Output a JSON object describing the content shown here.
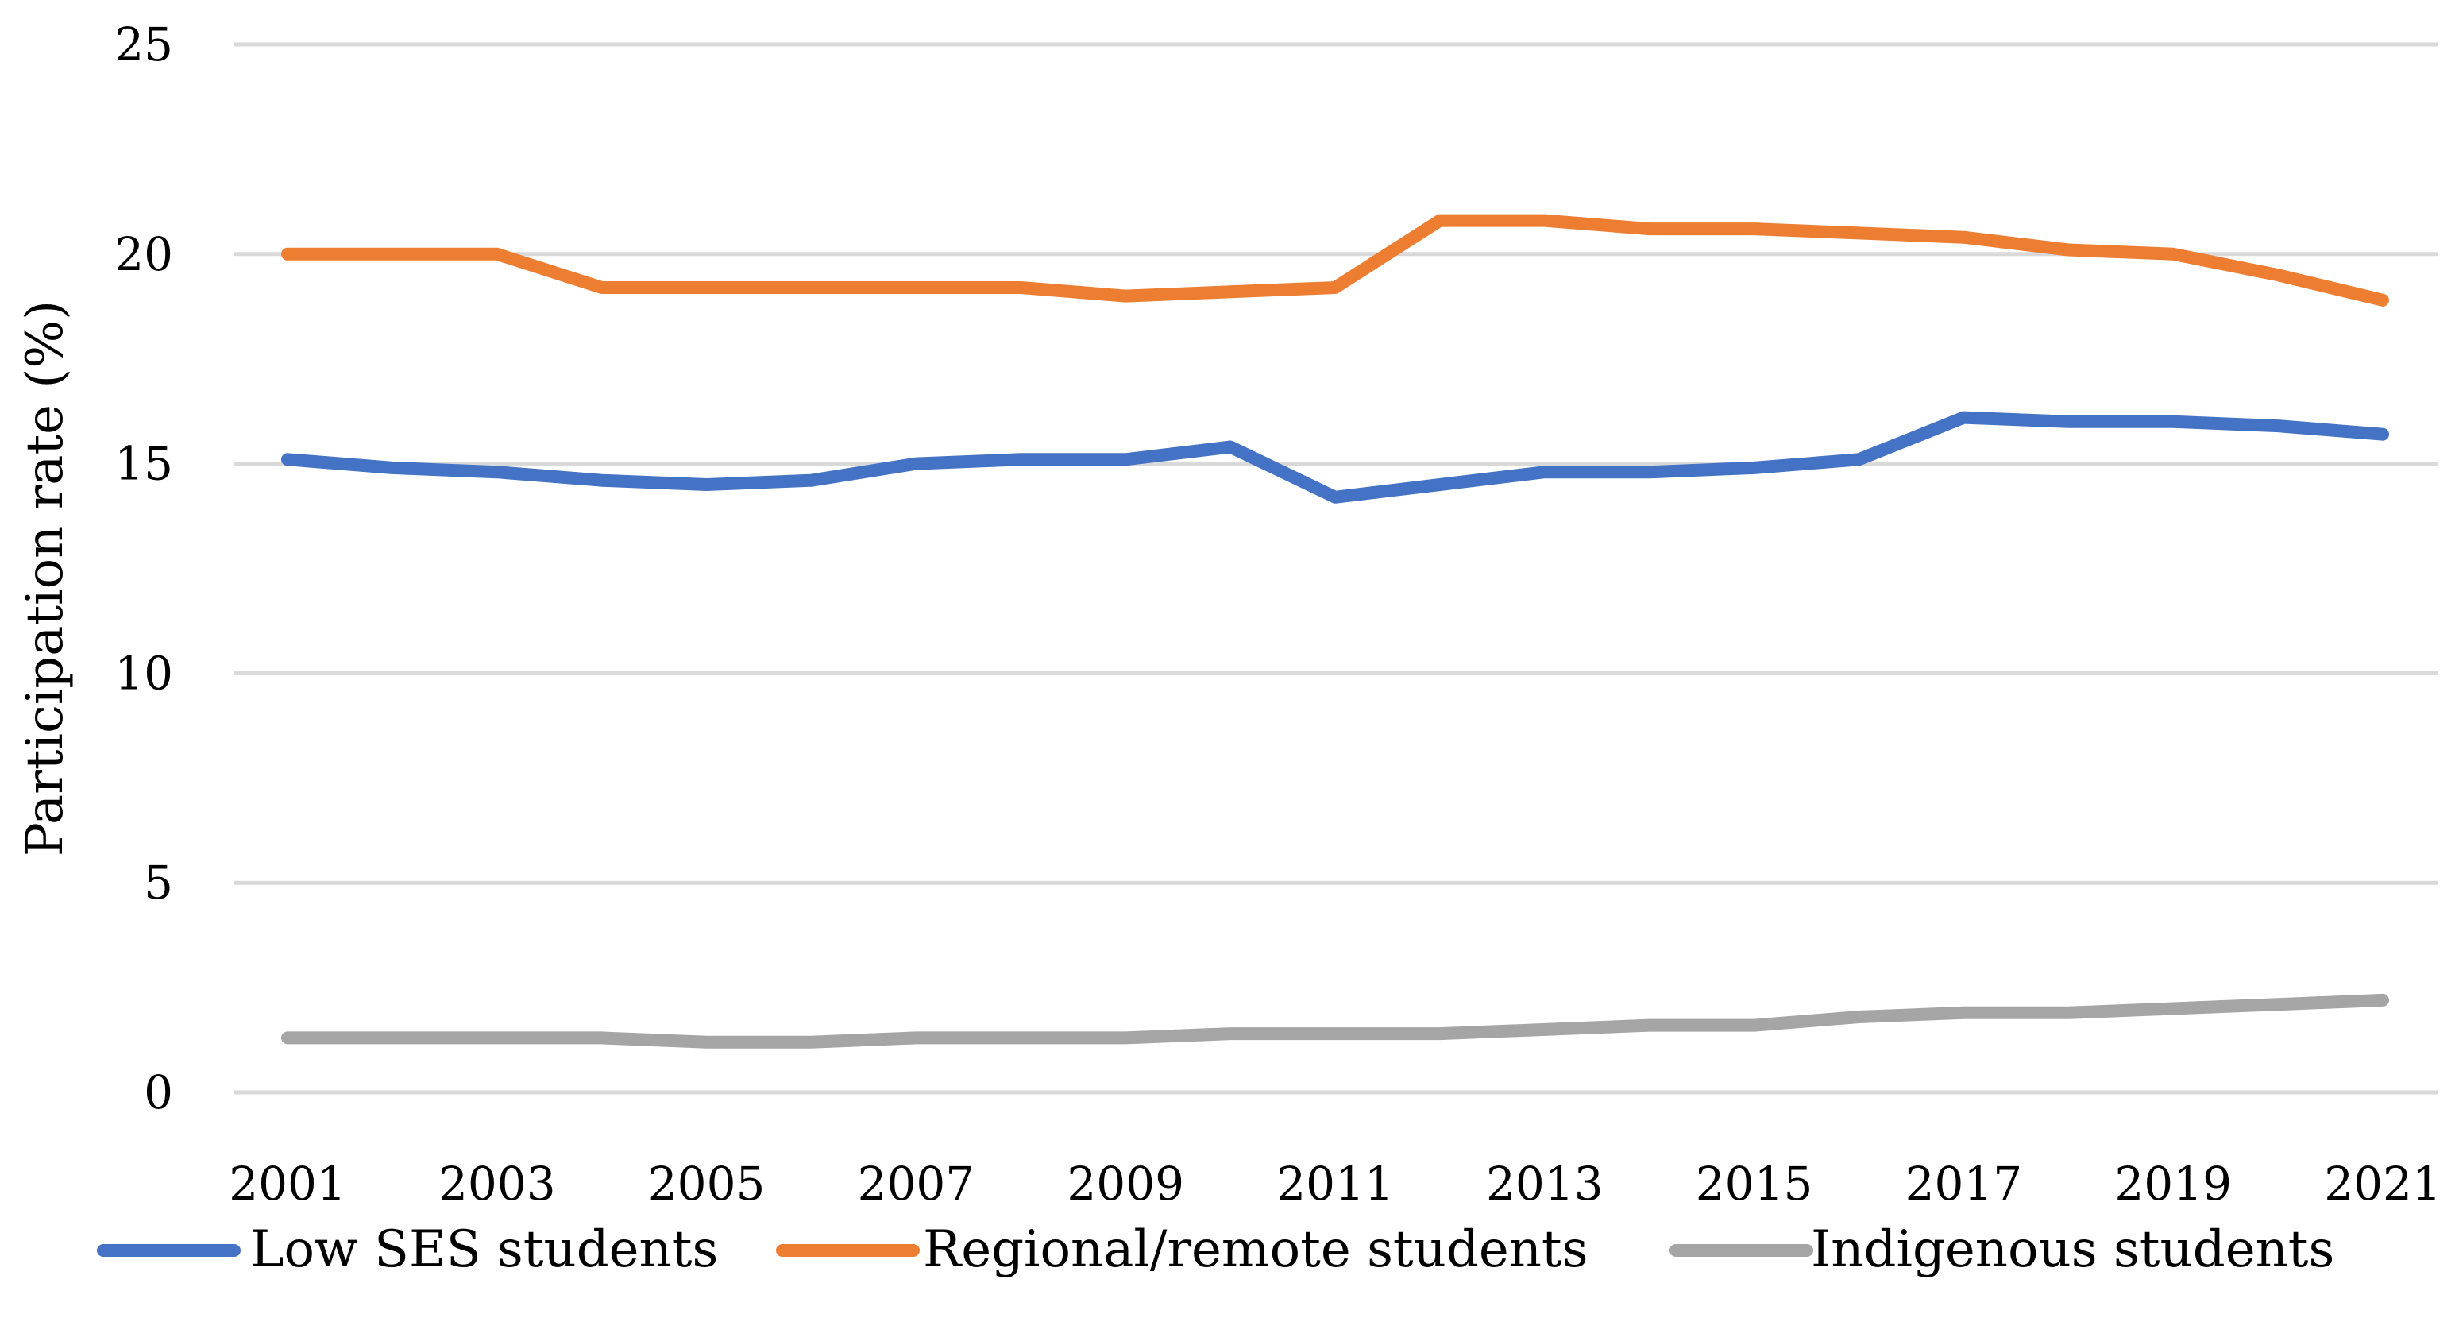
{
  "chart_data": {
    "type": "line",
    "title": "",
    "xlabel": "",
    "ylabel": "Participation rate (%)",
    "x": [
      2001,
      2002,
      2003,
      2004,
      2005,
      2006,
      2007,
      2008,
      2009,
      2010,
      2011,
      2012,
      2013,
      2014,
      2015,
      2016,
      2017,
      2018,
      2019,
      2020,
      2021
    ],
    "x_tick_labels": [
      "2001",
      "2003",
      "2005",
      "2007",
      "2009",
      "2011",
      "2013",
      "2015",
      "2017",
      "2019",
      "2021"
    ],
    "y_tick_labels": [
      "0",
      "5",
      "10",
      "15",
      "20",
      "25"
    ],
    "ylim": [
      0,
      25
    ],
    "grid": true,
    "legend_position": "bottom",
    "series": [
      {
        "name": "Low SES students",
        "color": "#4472C4",
        "values": [
          15.1,
          14.9,
          14.8,
          14.6,
          14.5,
          14.6,
          15.0,
          15.1,
          15.1,
          15.4,
          14.2,
          14.5,
          14.8,
          14.8,
          14.9,
          15.1,
          16.1,
          16.0,
          16.0,
          15.9,
          15.7
        ]
      },
      {
        "name": "Regional/remote students",
        "color": "#ED7D31",
        "values": [
          20.0,
          20.0,
          20.0,
          19.2,
          19.2,
          19.2,
          19.2,
          19.2,
          19.0,
          19.1,
          19.2,
          20.8,
          20.8,
          20.6,
          20.6,
          20.5,
          20.4,
          20.1,
          20.0,
          19.5,
          18.9
        ]
      },
      {
        "name": "Indigenous students",
        "color": "#A5A5A5",
        "values": [
          1.3,
          1.3,
          1.3,
          1.3,
          1.2,
          1.2,
          1.3,
          1.3,
          1.3,
          1.4,
          1.4,
          1.4,
          1.5,
          1.6,
          1.6,
          1.8,
          1.9,
          1.9,
          2.0,
          2.1,
          2.2
        ]
      }
    ]
  }
}
